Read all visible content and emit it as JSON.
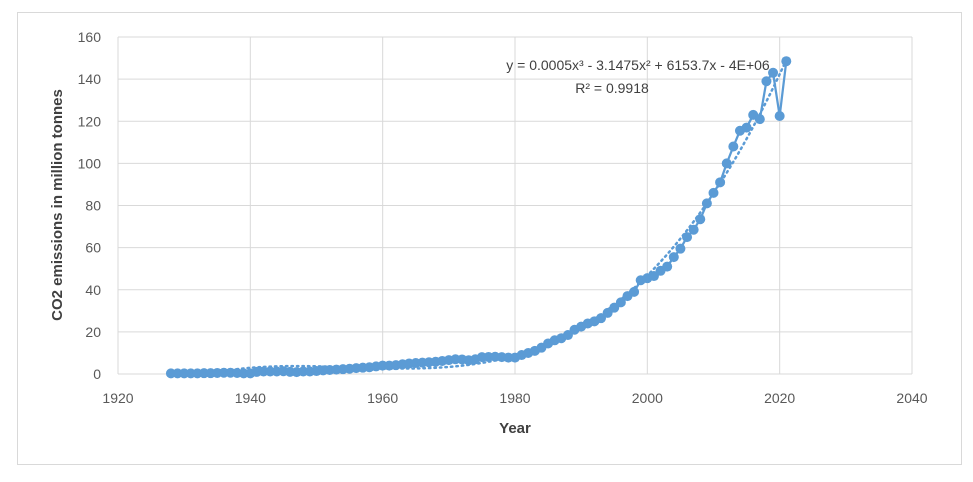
{
  "chart_data": {
    "type": "scatter",
    "title": "",
    "xlabel": "Year",
    "ylabel": "CO2 emissions in million tonnes",
    "xlim": [
      1920,
      2040
    ],
    "ylim": [
      0,
      160
    ],
    "xticks": [
      1920,
      1940,
      1960,
      1980,
      2000,
      2020,
      2040
    ],
    "yticks": [
      0,
      20,
      40,
      60,
      80,
      100,
      120,
      140,
      160
    ],
    "grid": true,
    "legend": "none",
    "colors": {
      "series": "#5b9bd5",
      "grid": "#d9d9d9",
      "text": "#595959"
    },
    "series": [
      {
        "x": [
          1928,
          1929,
          1930,
          1931,
          1932,
          1933,
          1934,
          1935,
          1936,
          1937,
          1938,
          1939,
          1940,
          1941,
          1942,
          1943,
          1944,
          1945,
          1946,
          1947,
          1948,
          1949,
          1950,
          1951,
          1952,
          1953,
          1954,
          1955,
          1956,
          1957,
          1958,
          1959,
          1960,
          1961,
          1962,
          1963,
          1964,
          1965,
          1966,
          1967,
          1968,
          1969,
          1970,
          1971,
          1972,
          1973,
          1974,
          1975,
          1976,
          1977,
          1978,
          1979,
          1980,
          1981,
          1982,
          1983,
          1984,
          1985,
          1986,
          1987,
          1988,
          1989,
          1990,
          1991,
          1992,
          1993,
          1994,
          1995,
          1996,
          1997,
          1998,
          1999,
          2000,
          2001,
          2002,
          2003,
          2004,
          2005,
          2006,
          2007,
          2008,
          2009,
          2010,
          2011,
          2012,
          2013,
          2014,
          2015,
          2016,
          2017,
          2018,
          2019,
          2020,
          2021
        ],
        "y": [
          0.3,
          0.3,
          0.3,
          0.3,
          0.3,
          0.4,
          0.4,
          0.5,
          0.6,
          0.6,
          0.5,
          0.3,
          0.3,
          1.0,
          1.2,
          1.2,
          1.2,
          1.3,
          1.0,
          0.9,
          1.2,
          1.2,
          1.4,
          1.7,
          1.9,
          2.1,
          2.3,
          2.5,
          2.8,
          3.0,
          3.2,
          3.6,
          4.0,
          4.0,
          4.2,
          4.6,
          5.0,
          5.2,
          5.4,
          5.6,
          5.8,
          6.2,
          6.6,
          7.0,
          6.9,
          6.5,
          7.0,
          8.0,
          8.1,
          8.2,
          8.0,
          7.8,
          7.8,
          9.0,
          10.0,
          11.0,
          12.5,
          14.5,
          16.0,
          17.0,
          18.5,
          21.0,
          22.5,
          24.0,
          25.0,
          26.5,
          29.0,
          31.5,
          34.0,
          37.0,
          39.0,
          44.5,
          45.5,
          46.5,
          49.0,
          51.0,
          55.5,
          59.5,
          65.0,
          68.5,
          73.5,
          81.0,
          86.0,
          91.0,
          100.0,
          108.0,
          115.5,
          117.0,
          123.0,
          121.0,
          139.0,
          143.0,
          122.5,
          148.5
        ]
      }
    ],
    "trendline": {
      "type": "polynomial",
      "order": 3,
      "style": "dotted"
    },
    "annotations": {
      "equation": "y = 0.0005x³ - 3.1475x² + 6153.7x - 4E+06",
      "r_squared": "R² = 0.9918"
    }
  }
}
